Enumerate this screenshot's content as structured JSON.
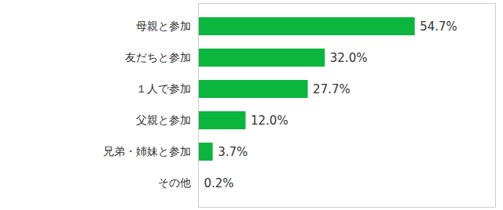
{
  "chart_data": {
    "type": "bar",
    "orientation": "horizontal",
    "categories": [
      "母親と参加",
      "友だちと参加",
      "１人で参加",
      "父親と参加",
      "兄弟・姉妹と参加",
      "その他"
    ],
    "values": [
      54.7,
      32.0,
      27.7,
      12.0,
      3.7,
      0.2
    ],
    "value_labels": [
      "54.7%",
      "32.0%",
      "27.7%",
      "12.0%",
      "3.7%",
      "0.2%"
    ],
    "color": "#0cb53e",
    "xlim": [
      0,
      75
    ],
    "data_labels": true,
    "tick_labels": "y",
    "grid": false
  }
}
